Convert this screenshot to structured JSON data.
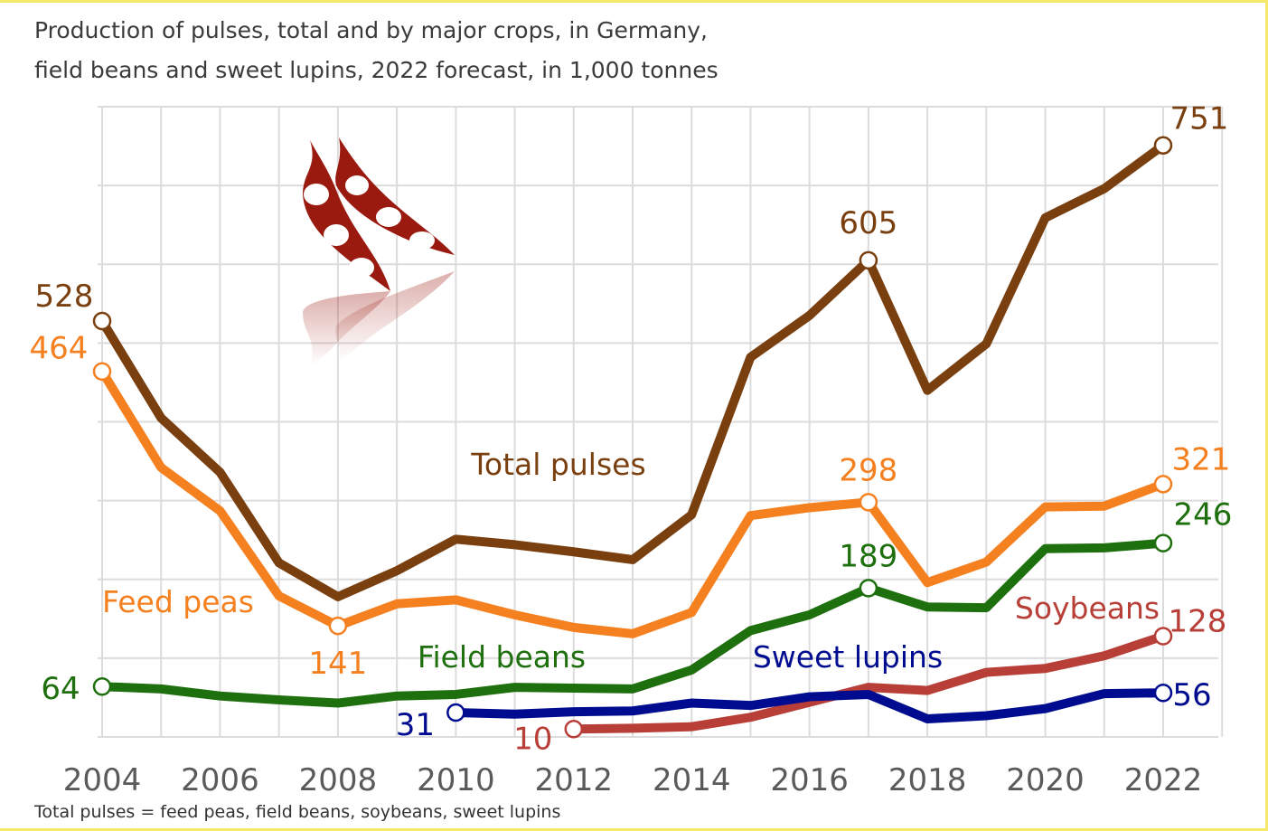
{
  "title_line1": "Production of pulses, total and by major crops, in Germany,",
  "title_line2": "field beans and sweet lupins, 2022 forecast, in 1,000 tonnes",
  "footnote": "Total pulses = feed peas, field beans, soybeans, sweet lupins",
  "chart_data": {
    "type": "line",
    "title": "Production of pulses, total and by major crops, in Germany, field beans and sweet lupins, 2022 forecast, in 1,000 tonnes",
    "xlabel": "",
    "ylabel": "",
    "xlim": [
      2004,
      2022
    ],
    "ylim": [
      0,
      800
    ],
    "x_ticks": [
      "2004",
      "2006",
      "2008",
      "2010",
      "2012",
      "2014",
      "2016",
      "2018",
      "2020",
      "2022"
    ],
    "grid": true,
    "legend": "none",
    "series": [
      {
        "name": "Total pulses",
        "color": "#7a3f0f",
        "x": [
          2004,
          2005,
          2006,
          2007,
          2008,
          2009,
          2010,
          2011,
          2012,
          2013,
          2014,
          2015,
          2016,
          2017,
          2018,
          2019,
          2020,
          2021,
          2022
        ],
        "values": [
          528,
          405,
          336,
          221,
          178,
          211,
          251,
          244,
          235,
          225,
          282,
          482,
          535,
          605,
          440,
          499,
          659,
          696,
          751
        ],
        "labeled": [
          {
            "x": 2004,
            "text": "528"
          },
          {
            "x": 2017,
            "text": "605"
          },
          {
            "x": 2022,
            "text": "751"
          }
        ]
      },
      {
        "name": "Feed peas",
        "color": "#f5801f",
        "x": [
          2004,
          2005,
          2006,
          2007,
          2008,
          2009,
          2010,
          2011,
          2012,
          2013,
          2014,
          2015,
          2016,
          2017,
          2018,
          2019,
          2020,
          2021,
          2022
        ],
        "values": [
          464,
          342,
          287,
          179,
          141,
          169,
          174,
          155,
          139,
          131,
          158,
          281,
          291,
          298,
          196,
          222,
          292,
          293,
          321
        ],
        "labeled": [
          {
            "x": 2004,
            "text": "464"
          },
          {
            "x": 2008,
            "text": "141"
          },
          {
            "x": 2017,
            "text": "298"
          },
          {
            "x": 2022,
            "text": "321"
          }
        ]
      },
      {
        "name": "Field beans",
        "color": "#1e6f0e",
        "x": [
          2004,
          2005,
          2006,
          2007,
          2008,
          2009,
          2010,
          2011,
          2012,
          2013,
          2014,
          2015,
          2016,
          2017,
          2018,
          2019,
          2020,
          2021,
          2022
        ],
        "values": [
          64,
          61,
          52,
          47,
          43,
          52,
          54,
          63,
          62,
          61,
          85,
          135,
          155,
          189,
          165,
          164,
          239,
          240,
          246
        ],
        "labeled": [
          {
            "x": 2004,
            "text": "64"
          },
          {
            "x": 2017,
            "text": "189"
          },
          {
            "x": 2022,
            "text": "246"
          }
        ]
      },
      {
        "name": "Sweet lupins",
        "color": "#000c8f",
        "x": [
          2010,
          2011,
          2012,
          2013,
          2014,
          2015,
          2016,
          2017,
          2018,
          2019,
          2020,
          2021,
          2022
        ],
        "values": [
          31,
          29,
          32,
          33,
          43,
          40,
          51,
          54,
          23,
          27,
          36,
          55,
          56
        ],
        "labeled": [
          {
            "x": 2010,
            "text": "31"
          },
          {
            "x": 2022,
            "text": "56"
          }
        ]
      },
      {
        "name": "Soybeans",
        "color": "#b83f37",
        "x": [
          2012,
          2013,
          2014,
          2015,
          2016,
          2017,
          2018,
          2019,
          2020,
          2021,
          2022
        ],
        "values": [
          10,
          11,
          13,
          25,
          44,
          63,
          59,
          82,
          87,
          103,
          128
        ],
        "labeled": [
          {
            "x": 2012,
            "text": "10"
          },
          {
            "x": 2022,
            "text": "128"
          }
        ]
      }
    ]
  }
}
